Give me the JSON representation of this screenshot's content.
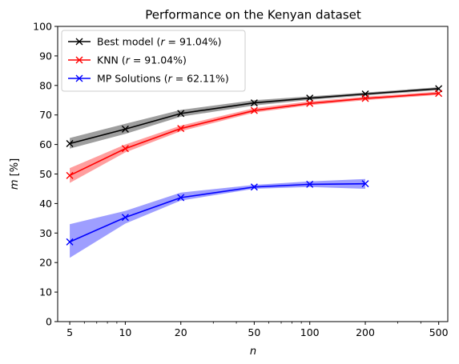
{
  "chart_data": {
    "type": "line",
    "title": "Performance on the Kenyan dataset",
    "xlabel": "n",
    "ylabel": "m [%]",
    "xscale": "log",
    "xlim": [
      4.3,
      560
    ],
    "ylim": [
      0,
      100
    ],
    "xticks": [
      5,
      10,
      20,
      50,
      100,
      200,
      500
    ],
    "yticks": [
      0,
      10,
      20,
      30,
      40,
      50,
      60,
      70,
      80,
      90,
      100
    ],
    "grid": false,
    "legend_position": "top-left",
    "series": [
      {
        "name": "Best model ($r = 91.04\\%$)",
        "legend_prefix": "Best model (",
        "legend_math": "r = 91.04%",
        "legend_suffix": ")",
        "color": "#000000",
        "band_color": "#000000",
        "marker": "x",
        "x": [
          5,
          10,
          20,
          50,
          100,
          200,
          500
        ],
        "y": [
          60.3,
          65.2,
          70.5,
          74.1,
          75.7,
          77.1,
          78.9
        ],
        "lower": [
          58.6,
          63.6,
          69.4,
          73.2,
          75.1,
          76.6,
          78.4
        ],
        "upper": [
          62.2,
          67.0,
          71.7,
          75.0,
          76.3,
          77.6,
          79.4
        ]
      },
      {
        "name": "KNN ($r = 91.04\\%$)",
        "legend_prefix": "KNN (",
        "legend_math": "r = 91.04%",
        "legend_suffix": ")",
        "color": "#ff0000",
        "band_color": "#ff0000",
        "marker": "x",
        "x": [
          5,
          10,
          20,
          50,
          100,
          200,
          500
        ],
        "y": [
          49.5,
          58.6,
          65.4,
          71.5,
          73.9,
          75.6,
          77.3
        ],
        "lower": [
          47.0,
          57.3,
          64.5,
          70.8,
          73.3,
          75.0,
          76.8
        ],
        "upper": [
          52.0,
          60.0,
          66.4,
          72.3,
          74.6,
          76.2,
          77.9
        ]
      },
      {
        "name": "MP Solutions ($r = 62.11\\%$)",
        "legend_prefix": "MP Solutions (",
        "legend_math": "r = 62.11%",
        "legend_suffix": ")",
        "color": "#0000ff",
        "band_color": "#0000ff",
        "marker": "x",
        "x": [
          5,
          10,
          20,
          50,
          100,
          200
        ],
        "y": [
          27.0,
          35.3,
          42.0,
          45.6,
          46.5,
          46.7
        ],
        "lower": [
          21.6,
          33.2,
          41.0,
          45.0,
          45.6,
          45.0
        ],
        "upper": [
          33.0,
          37.5,
          43.7,
          46.3,
          47.5,
          48.3
        ]
      }
    ]
  }
}
